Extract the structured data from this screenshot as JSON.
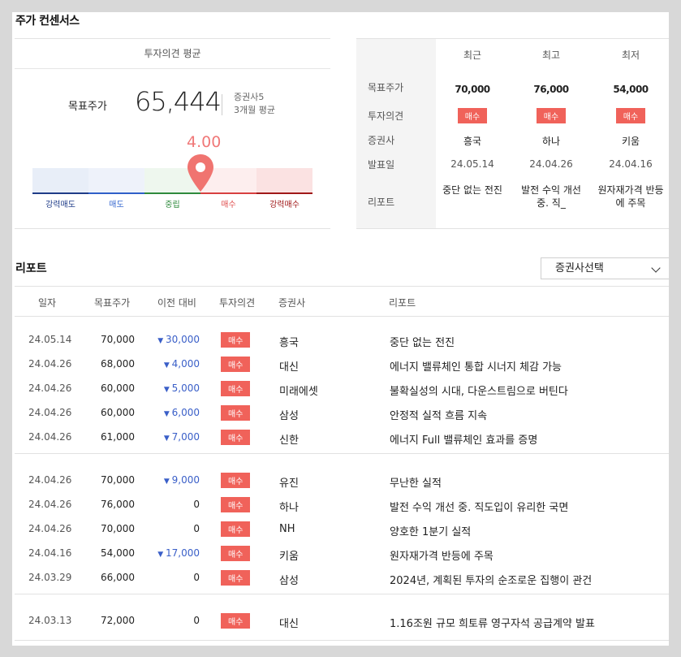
{
  "section_title": "주가 컨센서스",
  "consensus": {
    "header": "투자의견 평균",
    "target_label": "목표주가",
    "target_value": "65,444",
    "meta_line1": "증권사5",
    "meta_line2": "3개월 평균",
    "score": "4.00",
    "score_fraction": 0.6,
    "scale": [
      {
        "label": "강력매도",
        "bg": "#e8eef8",
        "line": "#1f3c88",
        "color": "#1f3c88"
      },
      {
        "label": "매도",
        "bg": "#eef2fa",
        "line": "#2f5fc8",
        "color": "#3a6bd0"
      },
      {
        "label": "중립",
        "bg": "#eef7ee",
        "line": "#2e8a3c",
        "color": "#2e8a3c"
      },
      {
        "label": "매수",
        "bg": "#fdeeee",
        "line": "#d84040",
        "color": "#e05050"
      },
      {
        "label": "강력매수",
        "bg": "#fbe2e2",
        "line": "#a01818",
        "color": "#a01818"
      }
    ]
  },
  "recent": {
    "headers": [
      "최근",
      "최고",
      "최저"
    ],
    "row_labels": [
      "목표주가",
      "투자의견",
      "증권사",
      "발표일",
      "리포트"
    ],
    "columns": [
      {
        "price": "70,000",
        "opinion": "매수",
        "firm": "흥국",
        "date": "24.05.14",
        "report": "중단 없는 전진"
      },
      {
        "price": "76,000",
        "opinion": "매수",
        "firm": "하나",
        "date": "24.04.26",
        "report": "발전 수익 개선 중. 직_"
      },
      {
        "price": "54,000",
        "opinion": "매수",
        "firm": "키움",
        "date": "24.04.16",
        "report": "원자재가격 반등에 주목"
      }
    ]
  },
  "reports": {
    "title": "리포트",
    "select_label": "증권사선택",
    "columns": [
      "일자",
      "목표주가",
      "이전 대비",
      "투자의견",
      "증권사",
      "리포트"
    ],
    "groups": [
      [
        {
          "date": "24.05.14",
          "price": "70,000",
          "diff": "30,000",
          "dir": "down",
          "opinion": "매수",
          "firm": "흥국",
          "title": "중단 없는 전진"
        },
        {
          "date": "24.04.26",
          "price": "68,000",
          "diff": "4,000",
          "dir": "down",
          "opinion": "매수",
          "firm": "대신",
          "title": "에너지 밸류체인 통합 시너지 체감 가능"
        },
        {
          "date": "24.04.26",
          "price": "60,000",
          "diff": "5,000",
          "dir": "down",
          "opinion": "매수",
          "firm": "미래에셋",
          "title": "불확실성의 시대, 다운스트림으로 버틴다"
        },
        {
          "date": "24.04.26",
          "price": "60,000",
          "diff": "6,000",
          "dir": "down",
          "opinion": "매수",
          "firm": "삼성",
          "title": "안정적 실적 흐름 지속"
        },
        {
          "date": "24.04.26",
          "price": "61,000",
          "diff": "7,000",
          "dir": "down",
          "opinion": "매수",
          "firm": "신한",
          "title": "에너지 Full 밸류체인 효과를 증명"
        }
      ],
      [
        {
          "date": "24.04.26",
          "price": "70,000",
          "diff": "9,000",
          "dir": "down",
          "opinion": "매수",
          "firm": "유진",
          "title": "무난한 실적"
        },
        {
          "date": "24.04.26",
          "price": "76,000",
          "diff": "0",
          "dir": "none",
          "opinion": "매수",
          "firm": "하나",
          "title": "발전 수익 개선 중. 직도입이 유리한 국면"
        },
        {
          "date": "24.04.26",
          "price": "70,000",
          "diff": "0",
          "dir": "none",
          "opinion": "매수",
          "firm": "NH",
          "title": "양호한 1분기 실적"
        },
        {
          "date": "24.04.16",
          "price": "54,000",
          "diff": "17,000",
          "dir": "down",
          "opinion": "매수",
          "firm": "키움",
          "title": "원자재가격 반등에 주목"
        },
        {
          "date": "24.03.29",
          "price": "66,000",
          "diff": "0",
          "dir": "none",
          "opinion": "매수",
          "firm": "삼성",
          "title": "2024년, 계획된 투자의 순조로운 집행이 관건"
        }
      ],
      [
        {
          "date": "24.03.13",
          "price": "72,000",
          "diff": "0",
          "dir": "none",
          "opinion": "매수",
          "firm": "대신",
          "title": "1.16조원 규모 희토류 영구자석 공급계약 발표"
        }
      ]
    ]
  }
}
